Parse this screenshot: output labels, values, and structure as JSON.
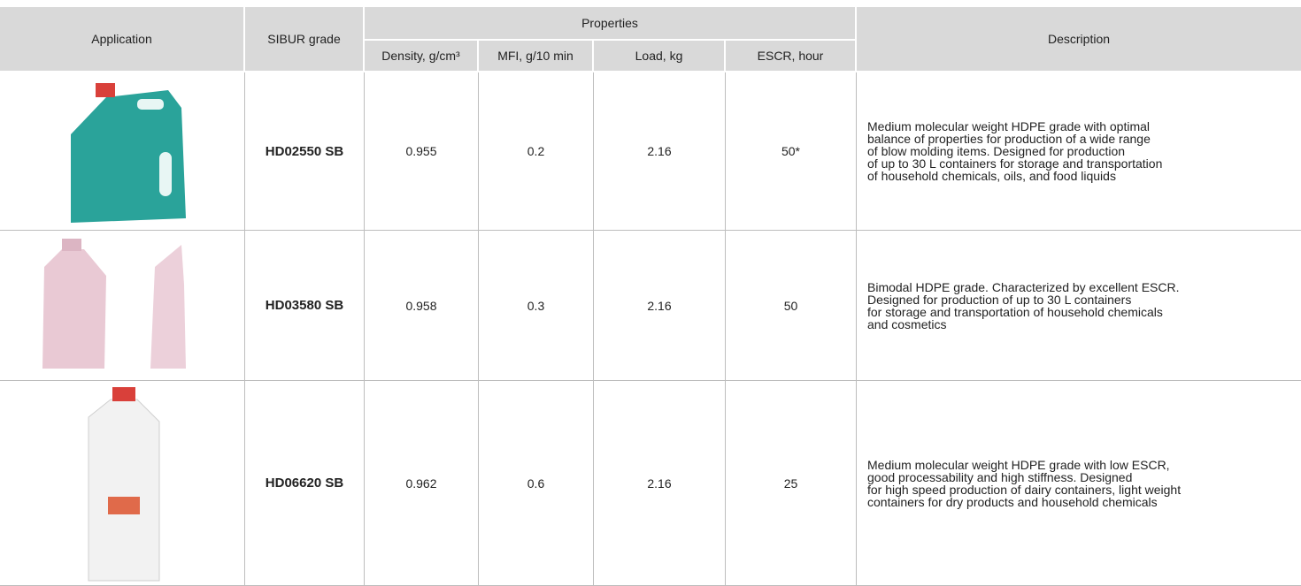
{
  "table": {
    "header": {
      "application": "Application",
      "grade": "SIBUR grade",
      "properties": "Properties",
      "description": "Description",
      "columns": [
        "Density, g/cm³",
        "MFI, g/10 min",
        "Load, kg",
        "ESCR, hour"
      ]
    },
    "rows": [
      {
        "grade": "HD02550 SB",
        "values": [
          "0.955",
          "0.2",
          "2.16",
          "50*"
        ],
        "description": [
          "Medium molecular weight HDPE grade with optimal",
          "balance of properties for production of a wide range",
          "of blow molding items. Designed for production",
          "of up to 30 L containers for storage and transportation",
          "of household chemicals, oils, and food liquids"
        ]
      },
      {
        "grade": "HD03580 SB",
        "values": [
          "0.958",
          "0.3",
          "2.16",
          "50"
        ],
        "description": [
          "Bimodal HDPE grade. Characterized by excellent ESCR.",
          "Designed for production of up to 30 L containers",
          "for storage and transportation of household chemicals",
          "and cosmetics"
        ]
      },
      {
        "grade": "HD06620 SB",
        "values": [
          "0.962",
          "0.6",
          "2.16",
          "25"
        ],
        "description": [
          "Medium molecular weight HDPE grade with low ESCR,",
          "good processability and high stiffness. Designed",
          "for high speed production of dairy containers, light weight",
          "containers for dry products and household chemicals"
        ]
      }
    ]
  }
}
